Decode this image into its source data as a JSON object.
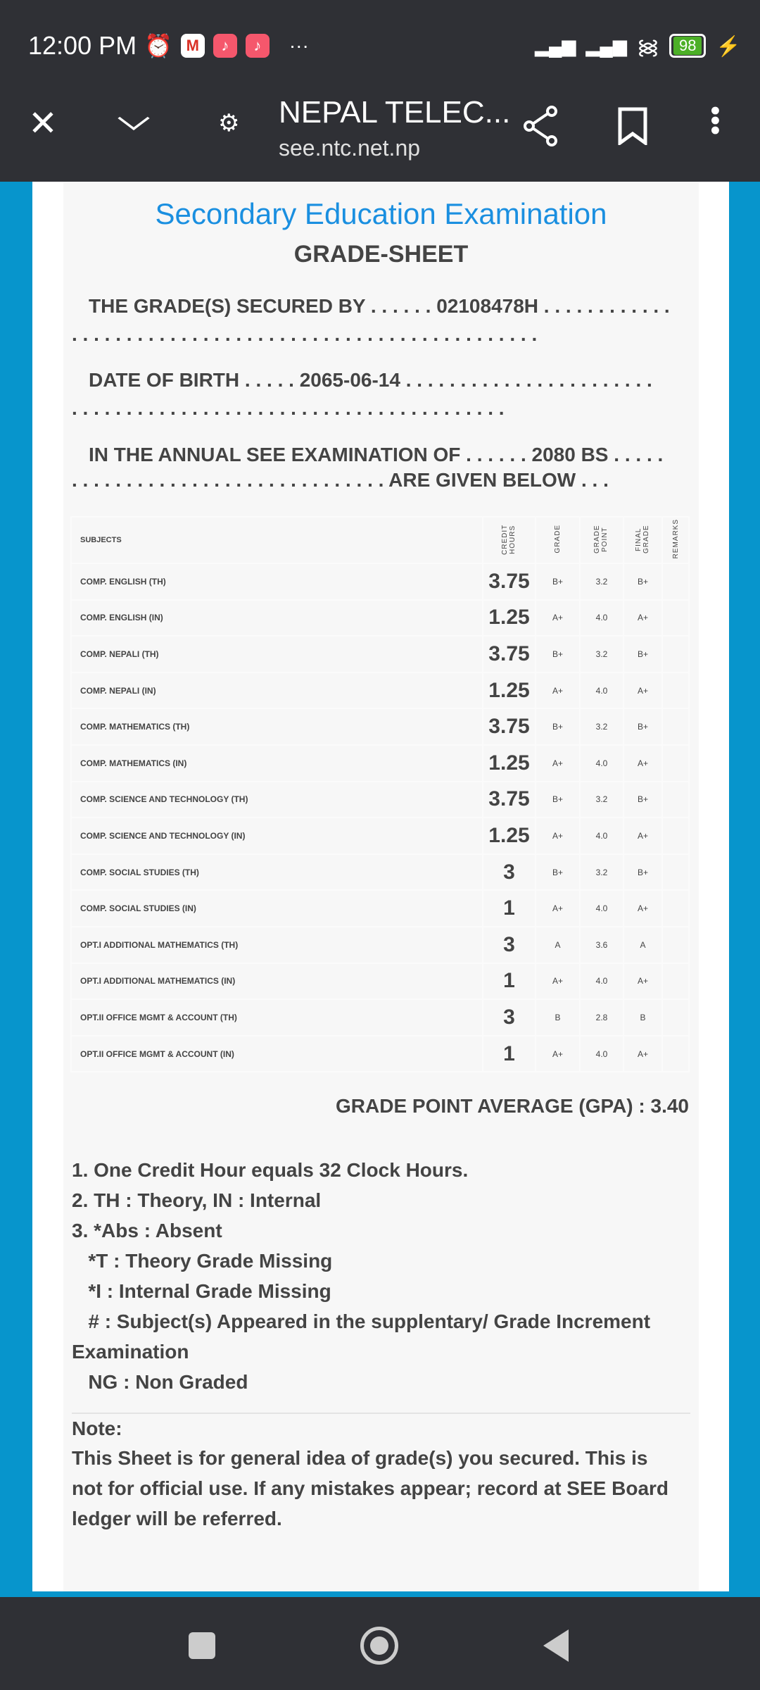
{
  "status": {
    "time": "12:00 PM",
    "battery": "98",
    "more": "···"
  },
  "browser": {
    "title": "NEPAL TELEC...",
    "url": "see.ntc.net.np"
  },
  "sheet": {
    "heading": "Secondary Education Examination",
    "subheading": "GRADE-SHEET",
    "secured_line1": "THE GRADE(S) SECURED BY . . . . . . 02108478H . . . . . . . . . . . .",
    "secured_line2": ". . . . . . . . . . . . . . . . . . . . . . . . . . . . . . . . . . . . . . . . . . .",
    "dob_line1": "DATE OF BIRTH . . . . . 2065-06-14 . . . . . . . . . . . . . . . . . . . . . . .",
    "dob_line2": ". . . . . . . . . . . . . . . . . . . . . . . . . . . . . . . . . . . . . . . .",
    "exam_line1": "IN THE ANNUAL SEE EXAMINATION OF . . . . . . 2080 BS . . . . .",
    "exam_line2": ". . . . . . . . . . . . . . . . . . . . . . . . . . . . . ARE GIVEN BELOW . . .",
    "columns": {
      "subjects": "SUBJECTS",
      "credit": "CREDIT HOURS",
      "grade": "GRADE",
      "point": "GRADE POINT",
      "final": "FINAL GRADE",
      "remarks": "REMARKS"
    },
    "rows": [
      {
        "subject": "COMP. ENGLISH (TH)",
        "credit": "3.75",
        "grade": "B+",
        "point": "3.2",
        "final": "B+",
        "remarks": ""
      },
      {
        "subject": "COMP. ENGLISH (IN)",
        "credit": "1.25",
        "grade": "A+",
        "point": "4.0",
        "final": "A+",
        "remarks": ""
      },
      {
        "subject": "COMP. NEPALI (TH)",
        "credit": "3.75",
        "grade": "B+",
        "point": "3.2",
        "final": "B+",
        "remarks": ""
      },
      {
        "subject": "COMP. NEPALI (IN)",
        "credit": "1.25",
        "grade": "A+",
        "point": "4.0",
        "final": "A+",
        "remarks": ""
      },
      {
        "subject": "COMP. MATHEMATICS (TH)",
        "credit": "3.75",
        "grade": "B+",
        "point": "3.2",
        "final": "B+",
        "remarks": ""
      },
      {
        "subject": "COMP. MATHEMATICS (IN)",
        "credit": "1.25",
        "grade": "A+",
        "point": "4.0",
        "final": "A+",
        "remarks": ""
      },
      {
        "subject": "COMP. SCIENCE AND TECHNOLOGY (TH)",
        "credit": "3.75",
        "grade": "B+",
        "point": "3.2",
        "final": "B+",
        "remarks": ""
      },
      {
        "subject": "COMP. SCIENCE AND TECHNOLOGY (IN)",
        "credit": "1.25",
        "grade": "A+",
        "point": "4.0",
        "final": "A+",
        "remarks": ""
      },
      {
        "subject": "COMP. SOCIAL STUDIES (TH)",
        "credit": "3",
        "grade": "B+",
        "point": "3.2",
        "final": "B+",
        "remarks": ""
      },
      {
        "subject": "COMP. SOCIAL STUDIES (IN)",
        "credit": "1",
        "grade": "A+",
        "point": "4.0",
        "final": "A+",
        "remarks": ""
      },
      {
        "subject": "OPT.I ADDITIONAL MATHEMATICS (TH)",
        "credit": "3",
        "grade": "A",
        "point": "3.6",
        "final": "A",
        "remarks": ""
      },
      {
        "subject": "OPT.I ADDITIONAL MATHEMATICS (IN)",
        "credit": "1",
        "grade": "A+",
        "point": "4.0",
        "final": "A+",
        "remarks": ""
      },
      {
        "subject": "OPT.II OFFICE MGMT & ACCOUNT (TH)",
        "credit": "3",
        "grade": "B",
        "point": "2.8",
        "final": "B",
        "remarks": ""
      },
      {
        "subject": "OPT.II OFFICE MGMT & ACCOUNT (IN)",
        "credit": "1",
        "grade": "A+",
        "point": "4.0",
        "final": "A+",
        "remarks": ""
      }
    ],
    "gpa": "GRADE POINT AVERAGE (GPA) : 3.40",
    "notes": [
      "1. One Credit Hour equals 32 Clock Hours.",
      "2. TH : Theory, IN : Internal",
      "3. *Abs : Absent",
      "   *T : Theory Grade Missing",
      "   *I : Internal Grade Missing",
      "   # : Subject(s) Appeared in the supplentary/ Grade Increment",
      "Examination",
      "   NG : Non Graded"
    ],
    "note_title": "Note:",
    "note_lines": [
      "This Sheet is for general idea of grade(s) you secured. This is",
      "not for official use. If any mistakes appear; record at SEE Board",
      "ledger will be referred."
    ]
  },
  "colors": {
    "heading": "#1a8fe0",
    "frame": "#0795cc",
    "bar": "#2f3035"
  }
}
